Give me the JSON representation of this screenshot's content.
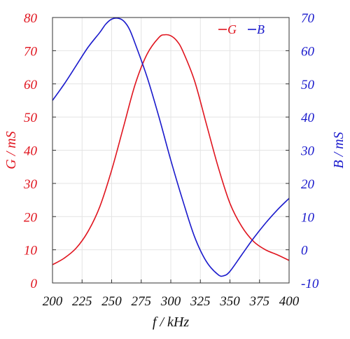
{
  "chart_data": {
    "type": "line",
    "title": "",
    "xlabel": "f / kHz",
    "ylabel_left": "G / mS",
    "ylabel_right": "B / mS",
    "xlim": [
      200,
      400
    ],
    "ylim_left": [
      0,
      80
    ],
    "ylim_right": [
      -10,
      70
    ],
    "x_ticks": [
      200,
      225,
      250,
      275,
      300,
      325,
      350,
      375,
      400
    ],
    "y_ticks_left": [
      0,
      10,
      20,
      30,
      40,
      50,
      60,
      70,
      80
    ],
    "y_ticks_right": [
      -10,
      0,
      10,
      20,
      30,
      40,
      50,
      60,
      70
    ],
    "grid": true,
    "legend_position": "top-right",
    "colors": {
      "G": "#e0141e",
      "B": "#1a1acc",
      "axis": "#333333",
      "grid": "#e4e4e4"
    },
    "series": [
      {
        "name": "G",
        "axis": "left",
        "x": [
          200,
          210,
          220,
          230,
          240,
          250,
          260,
          270,
          280,
          290,
          295,
          300,
          305,
          310,
          320,
          330,
          340,
          350,
          360,
          370,
          380,
          390,
          400
        ],
        "values": [
          5.5,
          7.5,
          10.5,
          15.5,
          23,
          34,
          47,
          60,
          69,
          74,
          74.8,
          74.5,
          73,
          70,
          61,
          48,
          35,
          24,
          17,
          12.5,
          10,
          8.5,
          6.8
        ]
      },
      {
        "name": "B",
        "axis": "right",
        "x": [
          200,
          210,
          220,
          230,
          240,
          245,
          250,
          255,
          260,
          265,
          270,
          280,
          290,
          300,
          310,
          320,
          330,
          340,
          345,
          350,
          360,
          370,
          380,
          390,
          400
        ],
        "values": [
          45,
          50,
          55.5,
          61,
          65.5,
          68,
          69.5,
          69.8,
          69,
          66.5,
          62,
          52,
          40,
          27,
          15,
          4,
          -3.5,
          -7.5,
          -7.8,
          -6.5,
          -1.5,
          3.5,
          8,
          12,
          15.5
        ]
      }
    ]
  }
}
